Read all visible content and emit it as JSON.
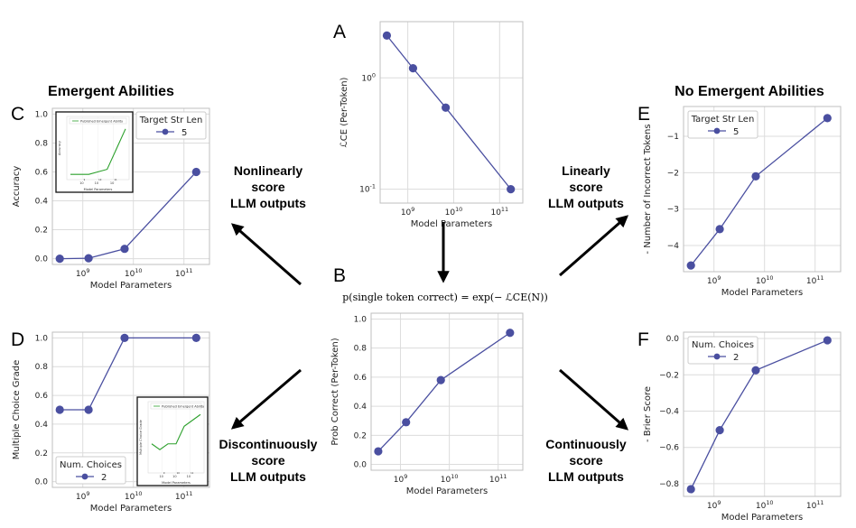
{
  "headings": {
    "left": "Emergent Abilities",
    "right": "No Emergent Abilities"
  },
  "arrows": {
    "top_left": [
      "Nonlinearly",
      "score",
      "LLM outputs"
    ],
    "bottom_left": [
      "Discontinuously",
      "score",
      "LLM outputs"
    ],
    "top_right": [
      "Linearly",
      "score",
      "LLM outputs"
    ],
    "bottom_right": [
      "Continuously",
      "score",
      "LLM outputs"
    ]
  },
  "formula": "p(single token correct) = exp(− ℒCE(N))",
  "colors": {
    "series": "#4a4fa0",
    "inset_line": "#2ca02c",
    "grid": "#dcdcdc",
    "frame": "#bfbfbf"
  },
  "chart_data": [
    {
      "id": "A",
      "letter": "A",
      "type": "line",
      "x": [
        350000000.0,
        1300000000.0,
        6700000000.0,
        175000000000.0
      ],
      "y": [
        2.4,
        1.22,
        0.54,
        0.1
      ],
      "xscale": "log",
      "xlim": [
        250000000.0,
        320000000000.0
      ],
      "yscale": "log",
      "ylim": [
        0.075,
        3.2
      ],
      "xticks": [
        1000000000.0,
        10000000000.0,
        100000000000.0
      ],
      "xtick_labels": [
        "10^9",
        "10^10",
        "10^11"
      ],
      "yticks": [
        1,
        0.1
      ],
      "ytick_labels": [
        "10^0",
        "10^-1"
      ],
      "xlabel": "Model Parameters",
      "ylabel": "ℒCE (Per-Token)",
      "grid": true,
      "legend": null
    },
    {
      "id": "B",
      "letter": "B",
      "type": "line",
      "x": [
        350000000.0,
        1300000000.0,
        6700000000.0,
        175000000000.0
      ],
      "y": [
        0.09,
        0.29,
        0.58,
        0.905
      ],
      "xscale": "log",
      "xlim": [
        250000000.0,
        320000000000.0
      ],
      "yscale": "linear",
      "ylim": [
        -0.04,
        1.04
      ],
      "xticks": [
        1000000000.0,
        10000000000.0,
        100000000000.0
      ],
      "xtick_labels": [
        "10^9",
        "10^10",
        "10^11"
      ],
      "yticks": [
        0,
        0.2,
        0.4,
        0.6,
        0.8,
        1.0
      ],
      "ytick_labels": [
        "0.0",
        "0.2",
        "0.4",
        "0.6",
        "0.8",
        "1.0"
      ],
      "xlabel": "Model Parameters",
      "ylabel": "Prob Correct (Per-Token)",
      "grid": true,
      "legend": null
    },
    {
      "id": "C",
      "letter": "C",
      "type": "line",
      "x": [
        350000000.0,
        1300000000.0,
        6700000000.0,
        175000000000.0
      ],
      "y": [
        0.0,
        0.003,
        0.068,
        0.6
      ],
      "xscale": "log",
      "xlim": [
        250000000.0,
        320000000000.0
      ],
      "yscale": "linear",
      "ylim": [
        -0.04,
        1.04
      ],
      "xticks": [
        1000000000.0,
        10000000000.0,
        100000000000.0
      ],
      "xtick_labels": [
        "10^9",
        "10^10",
        "10^11"
      ],
      "yticks": [
        0,
        0.2,
        0.4,
        0.6,
        0.8,
        1.0
      ],
      "ytick_labels": [
        "0.0",
        "0.2",
        "0.4",
        "0.6",
        "0.8",
        "1.0"
      ],
      "xlabel": "Model Parameters",
      "ylabel": "Accuracy",
      "grid": true,
      "legend": {
        "title": "Target Str Len",
        "label": "5",
        "placement": "top-right"
      },
      "inset": {
        "placement": "top-left",
        "legend": "Published Emergent Ability",
        "y": [
          0.05,
          0.05,
          0.15,
          0.95
        ],
        "xlabel": "Model Parameters",
        "ylabel": "Accuracy",
        "xtick_labels": [
          "10^9",
          "10^10",
          "10^11"
        ]
      }
    },
    {
      "id": "D",
      "letter": "D",
      "type": "line",
      "x": [
        350000000.0,
        1300000000.0,
        6700000000.0,
        175000000000.0
      ],
      "y": [
        0.5,
        0.5,
        1.0,
        1.0
      ],
      "xscale": "log",
      "xlim": [
        250000000.0,
        320000000000.0
      ],
      "yscale": "linear",
      "ylim": [
        -0.04,
        1.04
      ],
      "xticks": [
        1000000000.0,
        10000000000.0,
        100000000000.0
      ],
      "xtick_labels": [
        "10^9",
        "10^10",
        "10^11"
      ],
      "yticks": [
        0,
        0.2,
        0.4,
        0.6,
        0.8,
        1.0
      ],
      "ytick_labels": [
        "0.0",
        "0.2",
        "0.4",
        "0.6",
        "0.8",
        "1.0"
      ],
      "xlabel": "Model Parameters",
      "ylabel": "Multiple Choice Grade",
      "grid": true,
      "legend": {
        "title": "Num. Choices",
        "label": "2",
        "placement": "bottom-left"
      },
      "inset": {
        "placement": "bottom-right",
        "legend": "Published Emergent Ability",
        "y": [
          0.45,
          0.35,
          0.45,
          0.45,
          0.75,
          0.85,
          0.95
        ],
        "xlabel": "Model Parameters",
        "ylabel": "Multiple Choice Grade",
        "xtick_labels": [
          "10^9",
          "10^10",
          "10^11"
        ]
      }
    },
    {
      "id": "E",
      "letter": "E",
      "type": "line",
      "x": [
        350000000.0,
        1300000000.0,
        6700000000.0,
        175000000000.0
      ],
      "y": [
        -4.55,
        -3.55,
        -2.1,
        -0.5
      ],
      "xscale": "log",
      "xlim": [
        250000000.0,
        320000000000.0
      ],
      "yscale": "linear",
      "ylim": [
        -4.72,
        -0.18
      ],
      "xticks": [
        1000000000.0,
        10000000000.0,
        100000000000.0
      ],
      "xtick_labels": [
        "10^9",
        "10^10",
        "10^11"
      ],
      "yticks": [
        -4,
        -3,
        -2,
        -1
      ],
      "ytick_labels": [
        "−4",
        "−3",
        "−2",
        "−1"
      ],
      "xlabel": "Model Parameters",
      "ylabel": "- Number of Incorrect Tokens",
      "grid": true,
      "legend": {
        "title": "Target Str Len",
        "label": "5",
        "placement": "top-left"
      }
    },
    {
      "id": "F",
      "letter": "F",
      "type": "line",
      "x": [
        350000000.0,
        1300000000.0,
        6700000000.0,
        175000000000.0
      ],
      "y": [
        -0.83,
        -0.505,
        -0.175,
        -0.01
      ],
      "xscale": "log",
      "xlim": [
        250000000.0,
        320000000000.0
      ],
      "yscale": "linear",
      "ylim": [
        -0.87,
        0.035
      ],
      "xticks": [
        1000000000.0,
        10000000000.0,
        100000000000.0
      ],
      "xtick_labels": [
        "10^9",
        "10^10",
        "10^11"
      ],
      "yticks": [
        0,
        -0.2,
        -0.4,
        -0.6,
        -0.8
      ],
      "ytick_labels": [
        "0.0",
        "−0.2",
        "−0.4",
        "−0.6",
        "−0.8"
      ],
      "xlabel": "Model Parameters",
      "ylabel": "- Brier Score",
      "grid": true,
      "legend": {
        "title": "Num. Choices",
        "label": "2",
        "placement": "top-left"
      }
    }
  ]
}
